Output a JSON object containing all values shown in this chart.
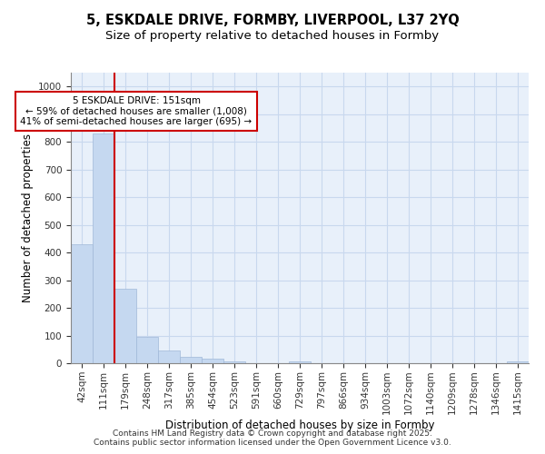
{
  "title_line1": "5, ESKDALE DRIVE, FORMBY, LIVERPOOL, L37 2YQ",
  "title_line2": "Size of property relative to detached houses in Formby",
  "xlabel": "Distribution of detached houses by size in Formby",
  "ylabel": "Number of detached properties",
  "categories": [
    "42sqm",
    "111sqm",
    "179sqm",
    "248sqm",
    "317sqm",
    "385sqm",
    "454sqm",
    "523sqm",
    "591sqm",
    "660sqm",
    "729sqm",
    "797sqm",
    "866sqm",
    "934sqm",
    "1003sqm",
    "1072sqm",
    "1140sqm",
    "1209sqm",
    "1278sqm",
    "1346sqm",
    "1415sqm"
  ],
  "values": [
    430,
    830,
    270,
    95,
    47,
    22,
    15,
    8,
    1,
    0,
    7,
    0,
    0,
    0,
    0,
    0,
    0,
    0,
    0,
    0,
    5
  ],
  "bar_color": "#c5d8f0",
  "bar_edge_color": "#a0b8d8",
  "grid_color": "#c8d8ee",
  "background_color": "#e8f0fa",
  "vline_x_index": 1.5,
  "vline_color": "#cc0000",
  "annotation_text": "5 ESKDALE DRIVE: 151sqm\n← 59% of detached houses are smaller (1,008)\n41% of semi-detached houses are larger (695) →",
  "annotation_box_color": "#cc0000",
  "ylim": [
    0,
    1050
  ],
  "yticks": [
    0,
    100,
    200,
    300,
    400,
    500,
    600,
    700,
    800,
    900,
    1000
  ],
  "footer_text": "Contains HM Land Registry data © Crown copyright and database right 2025.\nContains public sector information licensed under the Open Government Licence v3.0.",
  "title_fontsize": 10.5,
  "subtitle_fontsize": 9.5,
  "axis_label_fontsize": 8.5,
  "tick_fontsize": 7.5,
  "annotation_fontsize": 7.5,
  "footer_fontsize": 6.5
}
